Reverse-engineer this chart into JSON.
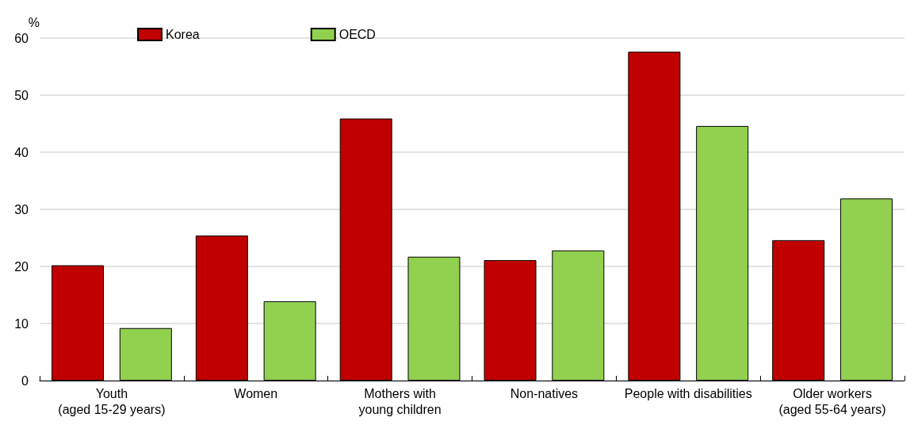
{
  "chart_data": {
    "type": "bar",
    "ylabel": "%",
    "categories": [
      "Youth\n(aged 15-29 years)",
      "Women",
      "Mothers with\nyoung children",
      "Non-natives",
      "People with disabilities",
      "Older workers\n(aged 55-64 years)"
    ],
    "series": [
      {
        "name": "Korea",
        "color": "#c00000",
        "values": [
          20.2,
          25.4,
          45.9,
          21.1,
          57.6,
          24.6
        ]
      },
      {
        "name": "OECD",
        "color": "#92d050",
        "values": [
          9.2,
          13.9,
          21.7,
          22.8,
          44.6,
          31.9
        ]
      }
    ],
    "ylim": [
      0,
      60
    ],
    "yticks": [
      0,
      10,
      20,
      30,
      40,
      50,
      60
    ],
    "grid": "y",
    "legend": "top left"
  }
}
